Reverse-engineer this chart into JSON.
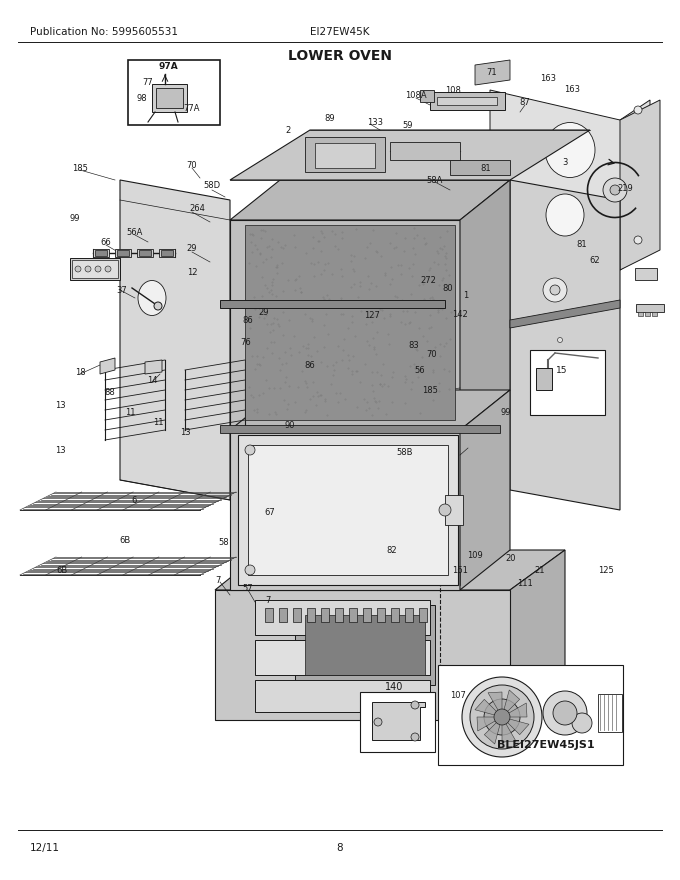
{
  "title": "LOWER OVEN",
  "pub_no": "Publication No: 5995605531",
  "model": "EI27EW45K",
  "date": "12/11",
  "page": "8",
  "diagram_id": "BLEI27EW45JS1",
  "bg_color": "#ffffff",
  "line_color": "#000000",
  "gray1": "#c8c8c8",
  "gray2": "#d8d8d8",
  "gray3": "#b0b0b0",
  "gray4": "#e8e8e8",
  "dark": "#1a1a1a",
  "title_fontsize": 10,
  "body_fontsize": 7.5,
  "label_fontsize": 6.5
}
